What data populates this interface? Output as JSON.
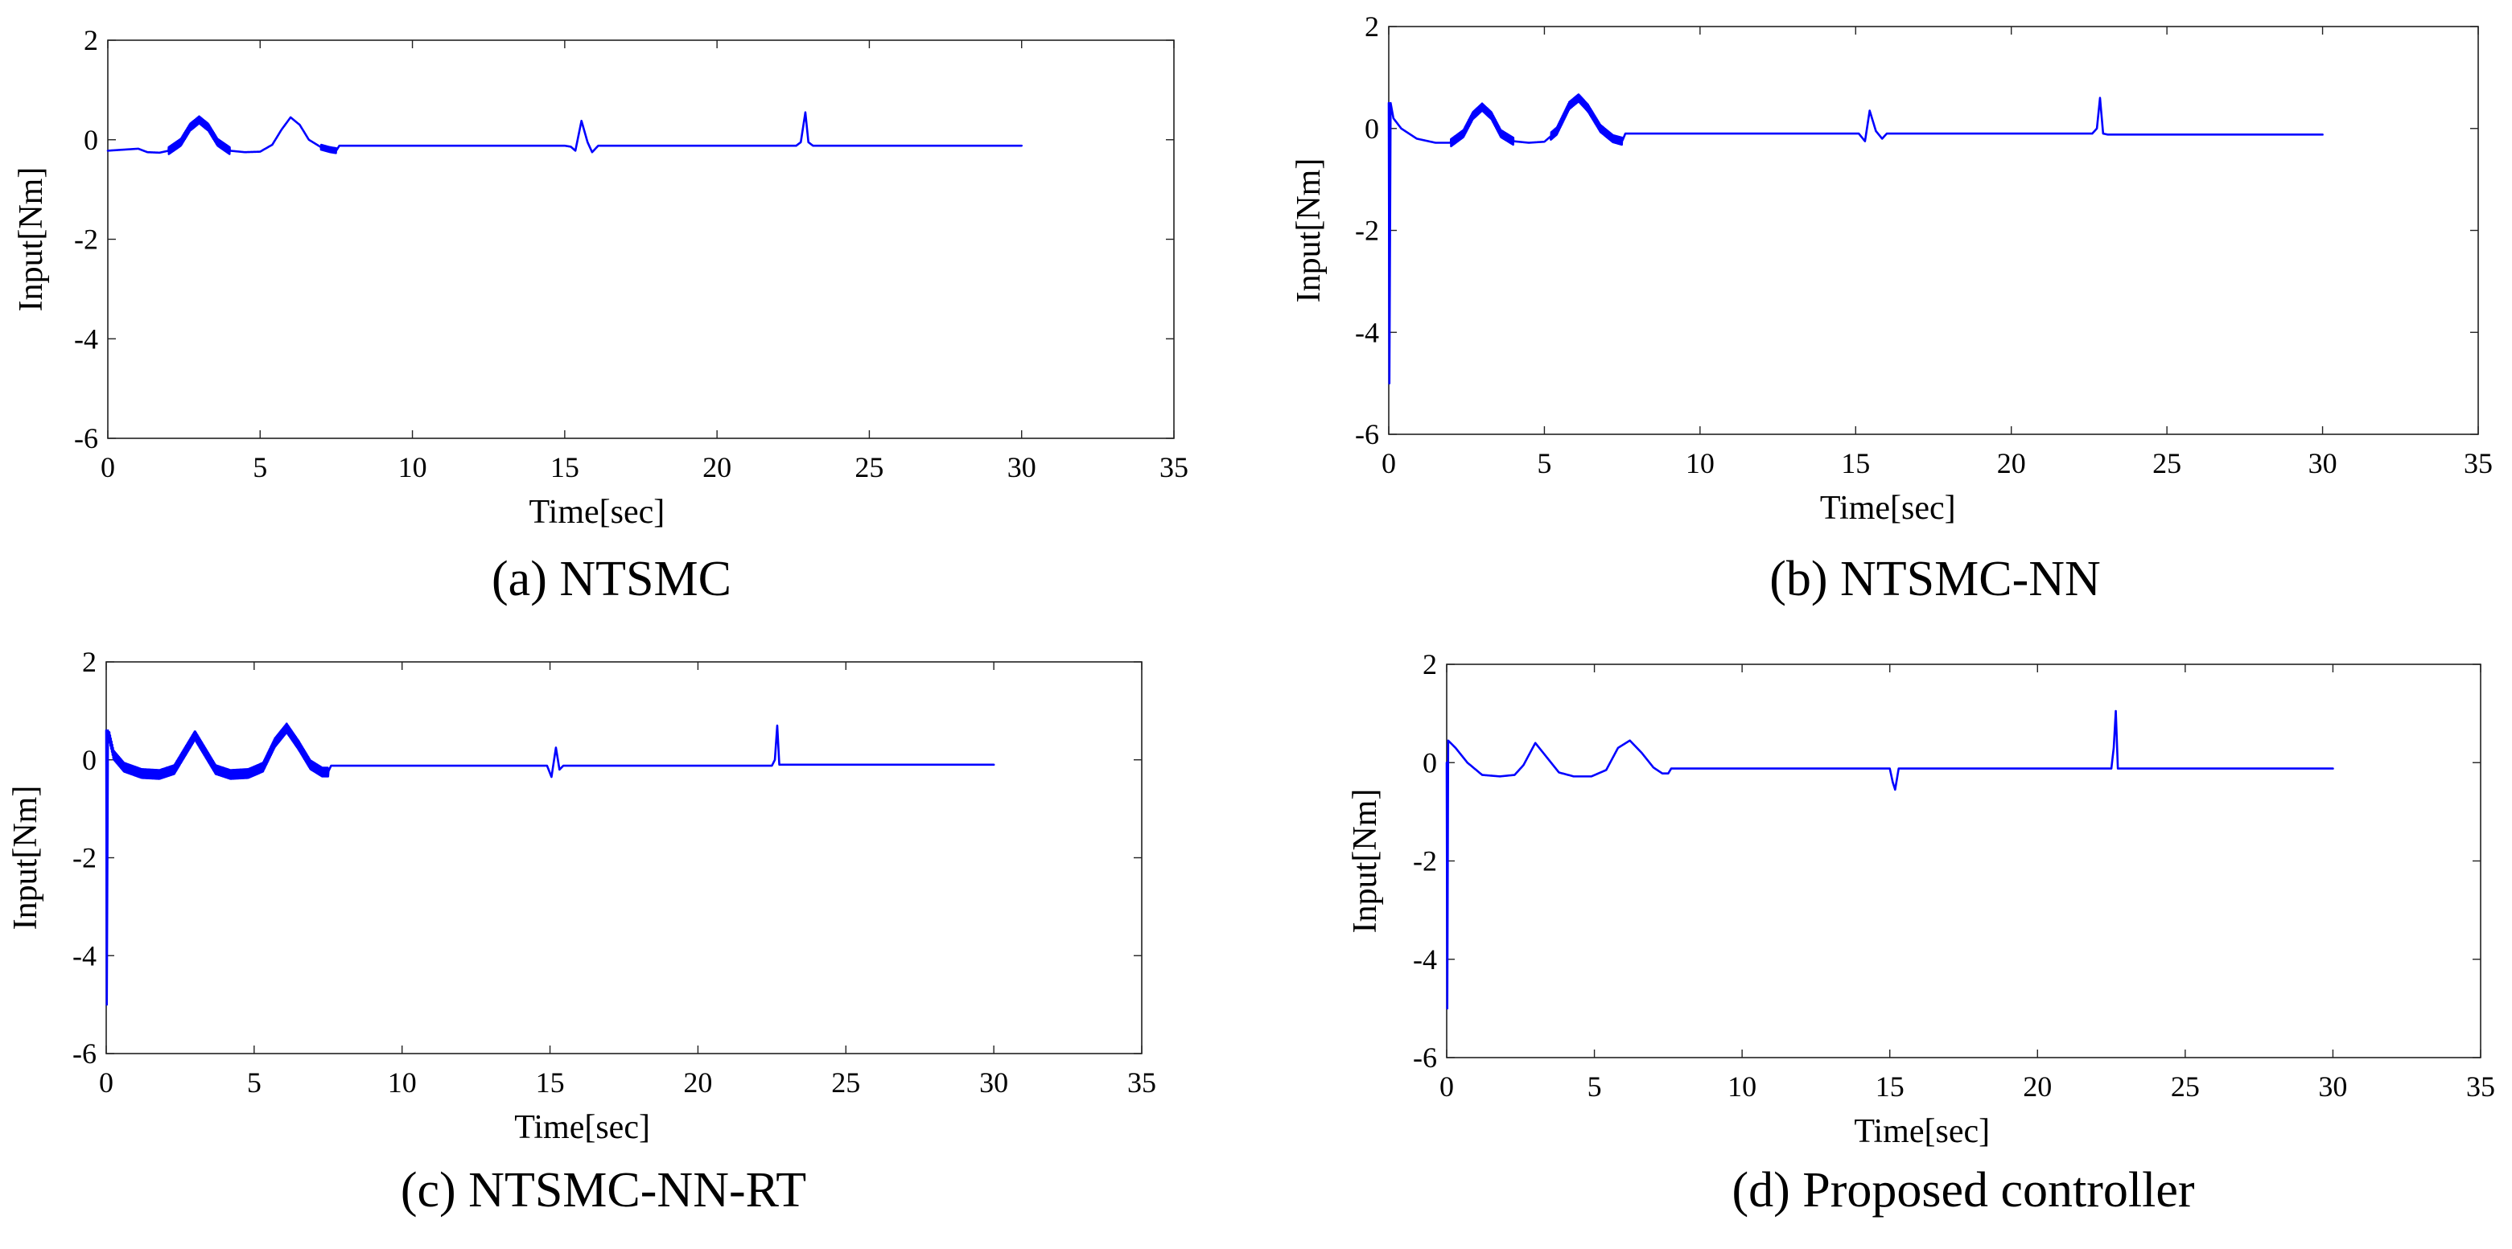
{
  "chart_data": [
    {
      "type": "line",
      "caption": "(a) NTSMC",
      "xlabel": "Time[sec]",
      "ylabel": "Input[Nm]",
      "xlim": [
        0,
        35
      ],
      "ylim": [
        -6,
        2
      ],
      "xticks": [
        "0",
        "5",
        "10",
        "15",
        "20",
        "25",
        "30",
        "35"
      ],
      "yticks": [
        "2",
        "0",
        "-2",
        "-4",
        "-6"
      ],
      "line_color": "#0000ff",
      "series": [
        {
          "name": "Input",
          "x": [
            0,
            0.5,
            1.0,
            1.3,
            1.7,
            2.0,
            2.4,
            2.7,
            3.0,
            3.3,
            3.6,
            4.0,
            4.5,
            5.0,
            5.4,
            5.7,
            6.0,
            6.3,
            6.6,
            7.0,
            7.3,
            7.5,
            7.6,
            15.0,
            15.2,
            15.35,
            15.55,
            15.75,
            15.9,
            16.1,
            22.6,
            22.75,
            22.9,
            23.0,
            23.15,
            30
          ],
          "y": [
            -0.22,
            -0.2,
            -0.18,
            -0.25,
            -0.26,
            -0.22,
            -0.05,
            0.25,
            0.4,
            0.25,
            -0.05,
            -0.22,
            -0.25,
            -0.24,
            -0.1,
            0.2,
            0.45,
            0.3,
            0.0,
            -0.15,
            -0.2,
            -0.22,
            -0.12,
            -0.12,
            -0.14,
            -0.22,
            0.38,
            -0.05,
            -0.25,
            -0.12,
            -0.12,
            -0.05,
            0.55,
            -0.05,
            -0.12,
            -0.12
          ]
        }
      ],
      "chatter_intervals": [
        [
          2.0,
          4.0,
          0.07
        ],
        [
          7.0,
          7.5,
          0.05
        ]
      ]
    },
    {
      "type": "line",
      "caption": "(b) NTSMC-NN",
      "xlabel": "Time[sec]",
      "ylabel": "Input[Nm]",
      "xlim": [
        0,
        35
      ],
      "ylim": [
        -6,
        2
      ],
      "xticks": [
        "0",
        "5",
        "10",
        "15",
        "20",
        "25",
        "30",
        "35"
      ],
      "yticks": [
        "2",
        "0",
        "-2",
        "-4",
        "-6"
      ],
      "line_color": "#0000ff",
      "series": [
        {
          "name": "Input",
          "x": [
            0,
            0.02,
            0.06,
            0.15,
            0.4,
            0.9,
            1.5,
            2.0,
            2.4,
            2.7,
            3.0,
            3.3,
            3.6,
            4.0,
            4.5,
            5.0,
            5.4,
            5.8,
            6.1,
            6.4,
            6.8,
            7.2,
            7.5,
            7.6,
            15.1,
            15.3,
            15.45,
            15.65,
            15.85,
            16.0,
            22.6,
            22.75,
            22.85,
            22.95,
            23.1,
            30
          ],
          "y": [
            0.5,
            -5.0,
            0.5,
            0.2,
            0.0,
            -0.2,
            -0.28,
            -0.28,
            -0.1,
            0.25,
            0.42,
            0.25,
            -0.1,
            -0.25,
            -0.28,
            -0.26,
            -0.05,
            0.45,
            0.6,
            0.4,
            0.0,
            -0.2,
            -0.25,
            -0.1,
            -0.1,
            -0.25,
            0.35,
            -0.05,
            -0.2,
            -0.1,
            -0.1,
            0.0,
            0.6,
            -0.1,
            -0.12,
            -0.12
          ]
        }
      ],
      "chatter_intervals": [
        [
          2.0,
          4.0,
          0.07
        ],
        [
          5.2,
          7.5,
          0.07
        ]
      ]
    },
    {
      "type": "line",
      "caption": "(c) NTSMC-NN-RT",
      "xlabel": "Time[sec]",
      "ylabel": "Input[Nm]",
      "xlim": [
        0,
        35
      ],
      "ylim": [
        -6,
        2
      ],
      "xticks": [
        "0",
        "5",
        "10",
        "15",
        "20",
        "25",
        "30",
        "35"
      ],
      "yticks": [
        "2",
        "0",
        "-2",
        "-4",
        "-6"
      ],
      "line_color": "#0000ff",
      "series": [
        {
          "name": "Input",
          "x": [
            0,
            0.02,
            0.06,
            0.25,
            0.6,
            1.2,
            1.8,
            2.3,
            2.7,
            3.0,
            3.3,
            3.7,
            4.2,
            4.8,
            5.3,
            5.7,
            6.1,
            6.5,
            6.9,
            7.3,
            7.5,
            7.6,
            14.9,
            15.05,
            15.2,
            15.32,
            15.45,
            22.5,
            22.6,
            22.68,
            22.75,
            30
          ],
          "y": [
            0.6,
            -5.0,
            0.6,
            0.1,
            -0.15,
            -0.28,
            -0.3,
            -0.2,
            0.2,
            0.5,
            0.2,
            -0.2,
            -0.3,
            -0.28,
            -0.15,
            0.35,
            0.65,
            0.3,
            -0.1,
            -0.25,
            -0.25,
            -0.12,
            -0.12,
            -0.35,
            0.25,
            -0.2,
            -0.12,
            -0.12,
            0.0,
            0.7,
            -0.1,
            -0.1
          ]
        }
      ],
      "chatter_intervals": [
        [
          0.1,
          7.5,
          0.09
        ]
      ]
    },
    {
      "type": "line",
      "caption": "(d) Proposed controller",
      "xlabel": "Time[sec]",
      "ylabel": "Input[Nm]",
      "xlim": [
        0,
        35
      ],
      "ylim": [
        -6,
        2
      ],
      "xticks": [
        "0",
        "5",
        "10",
        "15",
        "20",
        "25",
        "30",
        "35"
      ],
      "yticks": [
        "2",
        "0",
        "-2",
        "-4",
        "-6"
      ],
      "line_color": "#0000ff",
      "series": [
        {
          "name": "Input",
          "x": [
            0,
            0.02,
            0.05,
            0.3,
            0.7,
            1.2,
            1.8,
            2.3,
            2.6,
            3.0,
            3.4,
            3.8,
            4.3,
            4.9,
            5.4,
            5.8,
            6.2,
            6.6,
            7.0,
            7.3,
            7.5,
            7.6,
            15.0,
            15.1,
            15.18,
            15.3,
            22.5,
            22.58,
            22.65,
            22.72,
            30
          ],
          "y": [
            0.0,
            -5.0,
            0.45,
            0.3,
            0.0,
            -0.25,
            -0.28,
            -0.25,
            -0.05,
            0.4,
            0.1,
            -0.2,
            -0.28,
            -0.28,
            -0.15,
            0.3,
            0.45,
            0.2,
            -0.1,
            -0.22,
            -0.22,
            -0.12,
            -0.12,
            -0.4,
            -0.55,
            -0.12,
            -0.12,
            0.3,
            1.05,
            -0.12,
            -0.12
          ]
        }
      ],
      "chatter_intervals": []
    }
  ]
}
